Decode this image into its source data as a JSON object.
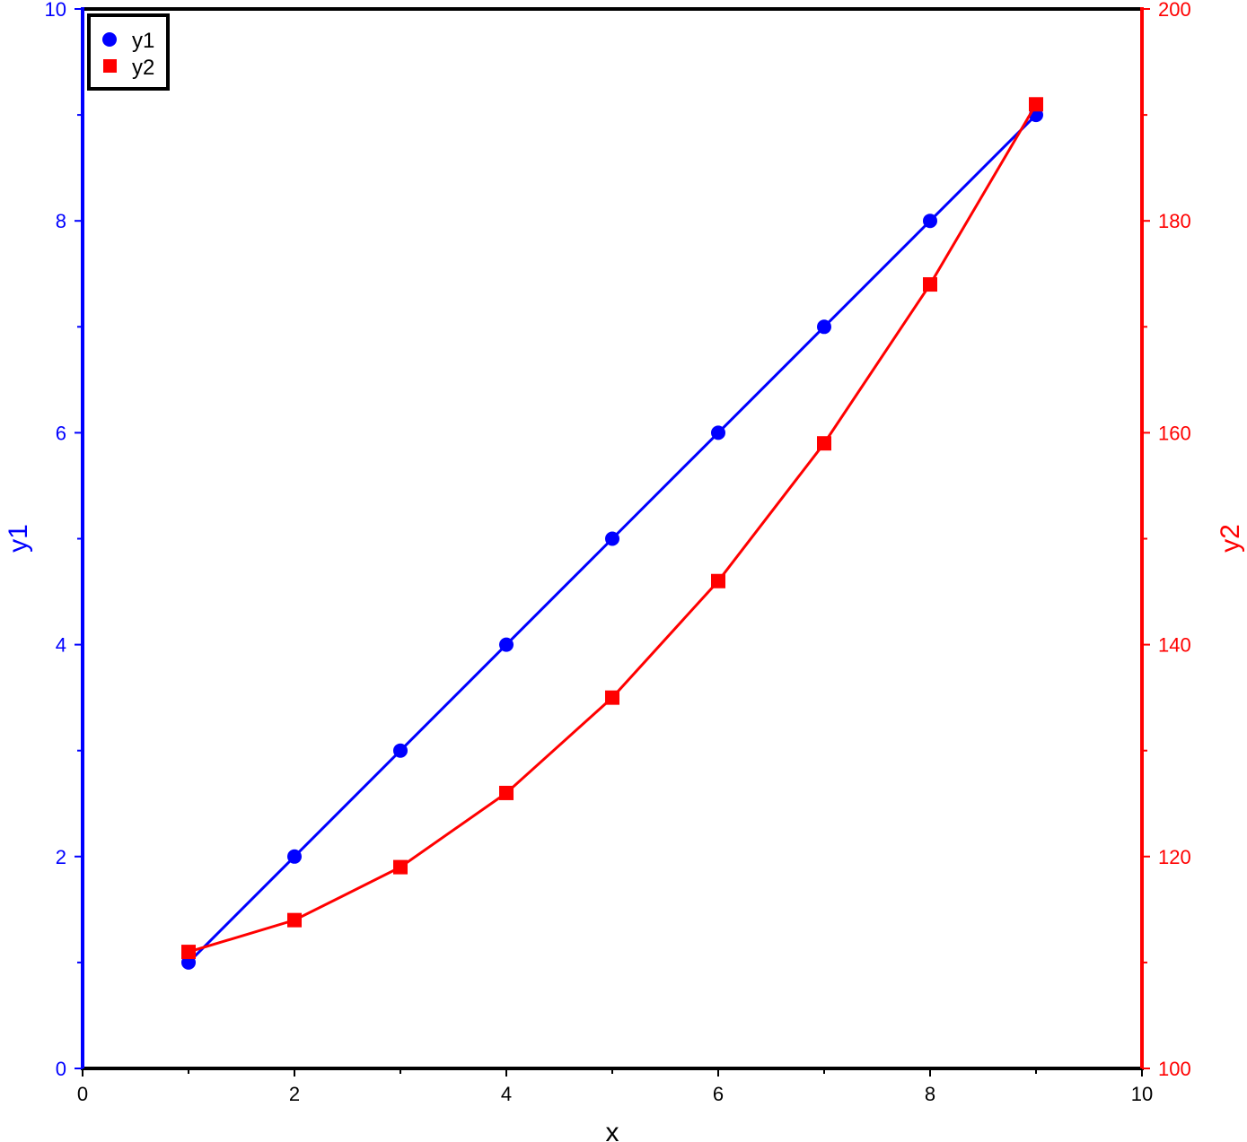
{
  "chart_data": {
    "type": "line",
    "title": "",
    "xlabel": "x",
    "ylabel": "y1",
    "y2label": "y2",
    "xlim": [
      0,
      10
    ],
    "ylim": [
      0,
      10
    ],
    "y2lim": [
      100,
      200
    ],
    "xticks": [
      0,
      2,
      4,
      6,
      8,
      10
    ],
    "yticks": [
      0,
      2,
      4,
      6,
      8,
      10
    ],
    "y2ticks": [
      100,
      120,
      140,
      160,
      180,
      200
    ],
    "grid": false,
    "legend": "top-left",
    "x": [
      1,
      2,
      3,
      4,
      5,
      6,
      7,
      8,
      9
    ],
    "series": [
      {
        "name": "y1",
        "axis": "left",
        "color": "#0000ff",
        "marker": "circle",
        "values": [
          1,
          2,
          3,
          4,
          5,
          6,
          7,
          8,
          9
        ]
      },
      {
        "name": "y2",
        "axis": "right",
        "color": "#ff0000",
        "marker": "square",
        "values": [
          111,
          114,
          119,
          126,
          135,
          146,
          159,
          174,
          191
        ]
      }
    ]
  }
}
